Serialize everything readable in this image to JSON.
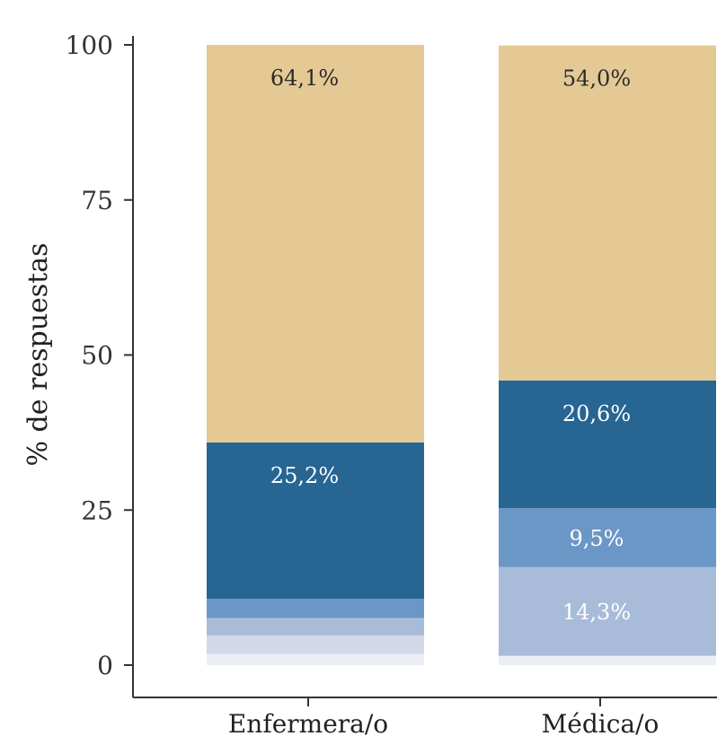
{
  "chart_data": {
    "type": "bar",
    "stacked": true,
    "title": "",
    "xlabel": "",
    "ylabel": "% de respuestas",
    "ylim": [
      0,
      100
    ],
    "yticks": [
      "0",
      "25",
      "50",
      "75",
      "100"
    ],
    "grid": false,
    "legend": "none",
    "categories": [
      "Enfermera/o",
      "Médica/o"
    ],
    "series": [
      {
        "values": [
          1.8,
          1.5
        ],
        "color": "#eceef6"
      },
      {
        "values": [
          3.0,
          0.0
        ],
        "color": "#d3d8e9"
      },
      {
        "values": [
          2.8,
          14.3
        ],
        "color": "#a8bbd9"
      },
      {
        "values": [
          3.1,
          9.5
        ],
        "color": "#6b97c6"
      },
      {
        "values": [
          25.2,
          20.6
        ],
        "color": "#276593"
      },
      {
        "values": [
          64.1,
          54.0
        ],
        "color": "#e4c995"
      }
    ],
    "data_labels": [
      {
        "category": 0,
        "series": 4,
        "text": "25,2%",
        "color": "#ffffff"
      },
      {
        "category": 0,
        "series": 5,
        "text": "64,1%",
        "color": "#2b2b2b"
      },
      {
        "category": 1,
        "series": 2,
        "text": "14,3%",
        "color": "#ffffff"
      },
      {
        "category": 1,
        "series": 3,
        "text": "9,5%",
        "color": "#ffffff"
      },
      {
        "category": 1,
        "series": 4,
        "text": "20,6%",
        "color": "#ffffff"
      },
      {
        "category": 1,
        "series": 5,
        "text": "54,0%",
        "color": "#2b2b2b"
      }
    ]
  }
}
